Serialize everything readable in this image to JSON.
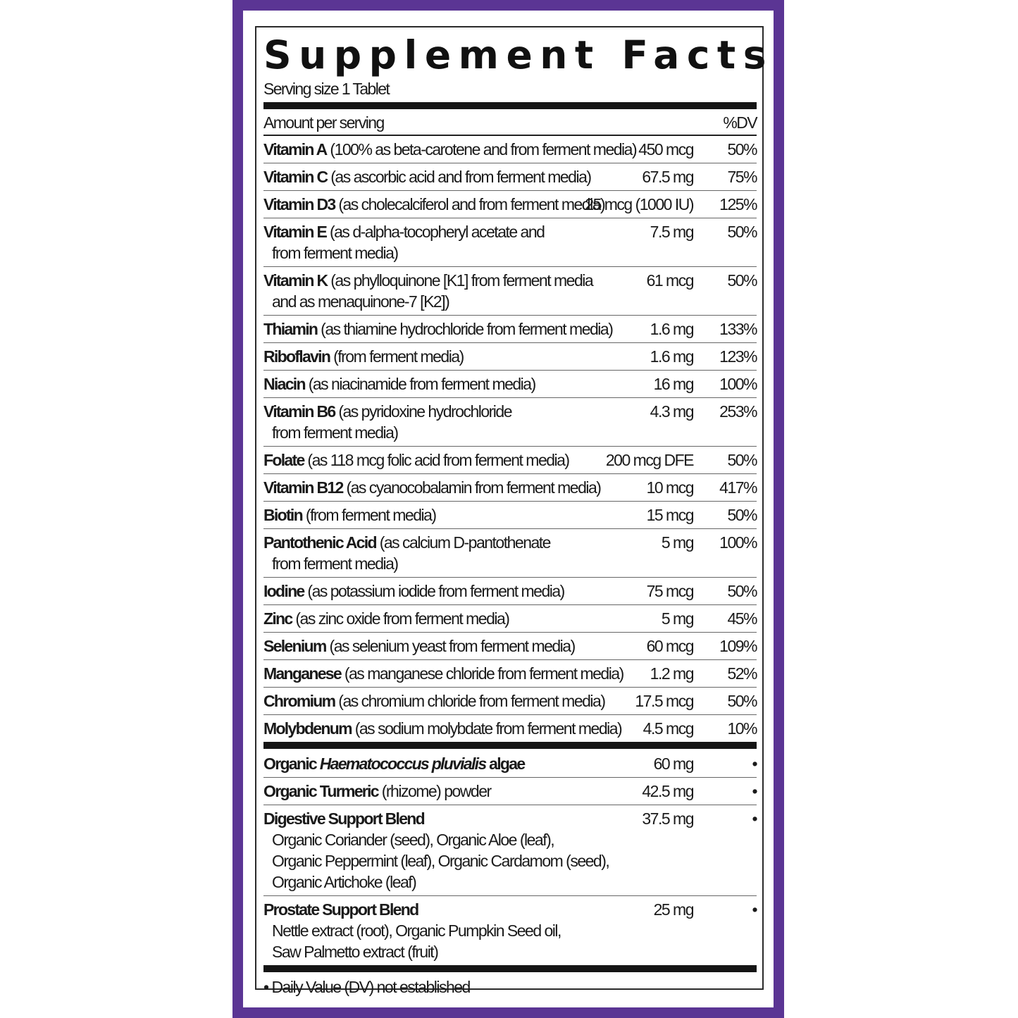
{
  "colors": {
    "border": "#5b3594",
    "text": "#1a1a1a"
  },
  "title": "Supplement Facts",
  "serving_size": "Serving size 1 Tablet",
  "header": {
    "amount": "Amount per serving",
    "dv": "%DV"
  },
  "nutrients": [
    {
      "name": "Vitamin A",
      "desc": [
        "(100% as beta-carotene and from ferment media)"
      ],
      "amount": "450 mcg",
      "dv": "50%"
    },
    {
      "name": "Vitamin C",
      "desc": [
        "(as ascorbic acid and from ferment media)"
      ],
      "amount": "67.5 mg",
      "dv": "75%"
    },
    {
      "name": "Vitamin D3",
      "desc": [
        "(as cholecalciferol and from ferment media)"
      ],
      "amount": "25 mcg (1000 IU)",
      "dv": "125%"
    },
    {
      "name": "Vitamin E",
      "desc": [
        "(as d-alpha-tocopheryl acetate and",
        "from ferment media)"
      ],
      "amount": "7.5 mg",
      "dv": "50%"
    },
    {
      "name": "Vitamin K",
      "desc": [
        "(as phylloquinone [K1] from ferment media",
        "and as menaquinone-7 [K2])"
      ],
      "amount": "61 mcg",
      "dv": "50%"
    },
    {
      "name": "Thiamin",
      "desc": [
        "(as thiamine hydrochloride from ferment media)"
      ],
      "amount": "1.6 mg",
      "dv": "133%"
    },
    {
      "name": "Riboflavin",
      "desc": [
        "(from ferment media)"
      ],
      "amount": "1.6 mg",
      "dv": "123%"
    },
    {
      "name": "Niacin",
      "desc": [
        "(as niacinamide from ferment media)"
      ],
      "amount": "16 mg",
      "dv": "100%"
    },
    {
      "name": "Vitamin B6",
      "desc": [
        "(as pyridoxine hydrochloride",
        "from ferment media)"
      ],
      "amount": "4.3 mg",
      "dv": "253%"
    },
    {
      "name": "Folate",
      "desc": [
        "(as 118 mcg folic acid from ferment media)"
      ],
      "amount": "200 mcg DFE",
      "dv": "50%"
    },
    {
      "name": "Vitamin B12",
      "desc": [
        "(as cyanocobalamin from ferment media)"
      ],
      "amount": "10 mcg",
      "dv": "417%"
    },
    {
      "name": "Biotin",
      "desc": [
        "(from ferment media)"
      ],
      "amount": "15 mcg",
      "dv": "50%"
    },
    {
      "name": "Pantothenic Acid",
      "desc": [
        "(as calcium D-pantothenate",
        "from ferment media)"
      ],
      "amount": "5 mg",
      "dv": "100%"
    },
    {
      "name": "Iodine",
      "desc": [
        "(as potassium iodide from ferment media)"
      ],
      "amount": "75 mcg",
      "dv": "50%"
    },
    {
      "name": "Zinc",
      "desc": [
        "(as zinc oxide from ferment media)"
      ],
      "amount": "5 mg",
      "dv": "45%"
    },
    {
      "name": "Selenium",
      "desc": [
        "(as selenium yeast from ferment media)"
      ],
      "amount": "60 mcg",
      "dv": "109%"
    },
    {
      "name": "Manganese",
      "desc": [
        "(as manganese chloride from ferment media)"
      ],
      "amount": "1.2 mg",
      "dv": "52%"
    },
    {
      "name": "Chromium",
      "desc": [
        "(as chromium chloride from ferment media)"
      ],
      "amount": "17.5 mcg",
      "dv": "50%"
    },
    {
      "name": "Molybdenum",
      "desc": [
        "(as sodium molybdate from ferment media)"
      ],
      "amount": "4.5 mcg",
      "dv": "10%"
    }
  ],
  "other": [
    {
      "name": "Organic ",
      "name_italic": "Haematococcus pluvialis",
      "name_after": " algae",
      "desc": [],
      "amount": "60 mg",
      "dv": "•"
    },
    {
      "name": "Organic Turmeric",
      "desc": [
        "(rhizome) powder"
      ],
      "amount": "42.5 mg",
      "dv": "•"
    },
    {
      "name": "Digestive Support Blend",
      "desc": [],
      "sub": [
        "Organic Coriander (seed), Organic Aloe (leaf),",
        "Organic Peppermint (leaf), Organic Cardamom (seed),",
        "Organic Artichoke (leaf)"
      ],
      "amount": "37.5 mg",
      "dv": "•"
    },
    {
      "name": "Prostate Support Blend",
      "desc": [],
      "sub": [
        "Nettle extract (root), Organic Pumpkin Seed oil,",
        "Saw Palmetto extract (fruit)"
      ],
      "amount": "25 mg",
      "dv": "•"
    }
  ],
  "footnote": "• Daily Value (DV) not established"
}
